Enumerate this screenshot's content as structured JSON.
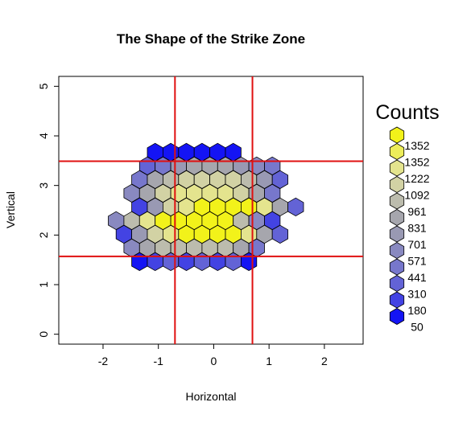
{
  "chart_data": {
    "type": "heatmap",
    "title": "The Shape of the Strike Zone",
    "xlabel": "Horizontal",
    "ylabel": "Vertical",
    "xlim": [
      -2.8,
      2.7
    ],
    "ylim": [
      -0.2,
      5.2
    ],
    "xticks": [
      -2,
      -1,
      0,
      1,
      2
    ],
    "yticks": [
      0,
      1,
      2,
      3,
      4,
      5
    ],
    "grid": false,
    "reference_lines": {
      "color": "#e01010",
      "vertical_x": [
        -0.7,
        0.7
      ],
      "horizontal_y": [
        1.57,
        3.49
      ]
    },
    "hex_rows": [
      {
        "y": 3.67,
        "offset": 1,
        "start": -4,
        "counts": [
          50,
          50,
          50,
          50,
          50,
          50
        ]
      },
      {
        "y": 3.33,
        "offset": 0,
        "start": -4,
        "counts": [
          310,
          441,
          701,
          831,
          831,
          831,
          701,
          571,
          441
        ]
      },
      {
        "y": 3.17,
        "offset": 1,
        "start": 0,
        "counts": []
      },
      {
        "y": 3.0,
        "offset": 1,
        "start": -5,
        "counts": [
          441,
          831,
          961,
          1092,
          1092,
          1092,
          1092,
          961,
          701,
          310
        ]
      },
      {
        "y": 2.83,
        "offset": 0,
        "start": -5,
        "counts": [
          571,
          831,
          1092,
          1222,
          1222,
          1222,
          1222,
          1092,
          831,
          441
        ]
      },
      {
        "y": 2.5,
        "offset": 1,
        "start": -5,
        "counts": [
          180,
          701,
          1092,
          1222,
          1352,
          1352,
          1352,
          1352,
          1222,
          831,
          310
        ]
      },
      {
        "y": 2.33,
        "offset": 0,
        "start": -6,
        "counts": [
          571,
          961,
          1222,
          1352,
          1352,
          1352,
          1352,
          1352,
          961,
          571,
          180
        ]
      },
      {
        "y": 2.0,
        "offset": 1,
        "start": -6,
        "counts": [
          180,
          701,
          1092,
          1222,
          1352,
          1352,
          1352,
          1352,
          1222,
          831,
          310
        ]
      },
      {
        "y": 1.83,
        "offset": 0,
        "start": -5,
        "counts": [
          571,
          831,
          961,
          961,
          961,
          961,
          961,
          831,
          441
        ]
      },
      {
        "y": 1.5,
        "offset": 1,
        "start": -5,
        "counts": [
          50,
          180,
          310,
          180,
          310,
          180,
          310,
          50
        ]
      }
    ],
    "legend": {
      "title": "Counts",
      "placement": "right",
      "entries": [
        {
          "count": "1352",
          "color": "#f2f21a"
        },
        {
          "count": "1352",
          "color": "#eded5a"
        },
        {
          "count": "1222",
          "color": "#e4e48e"
        },
        {
          "count": "1092",
          "color": "#d2d2a4"
        },
        {
          "count": "961",
          "color": "#bcbcad"
        },
        {
          "count": "831",
          "color": "#a6a6ad"
        },
        {
          "count": "701",
          "color": "#9999b3"
        },
        {
          "count": "571",
          "color": "#8989c0"
        },
        {
          "count": "441",
          "color": "#7777cc"
        },
        {
          "count": "310",
          "color": "#6363d6"
        },
        {
          "count": "180",
          "color": "#4343e3"
        },
        {
          "count": "50",
          "color": "#1414f4"
        }
      ]
    }
  }
}
